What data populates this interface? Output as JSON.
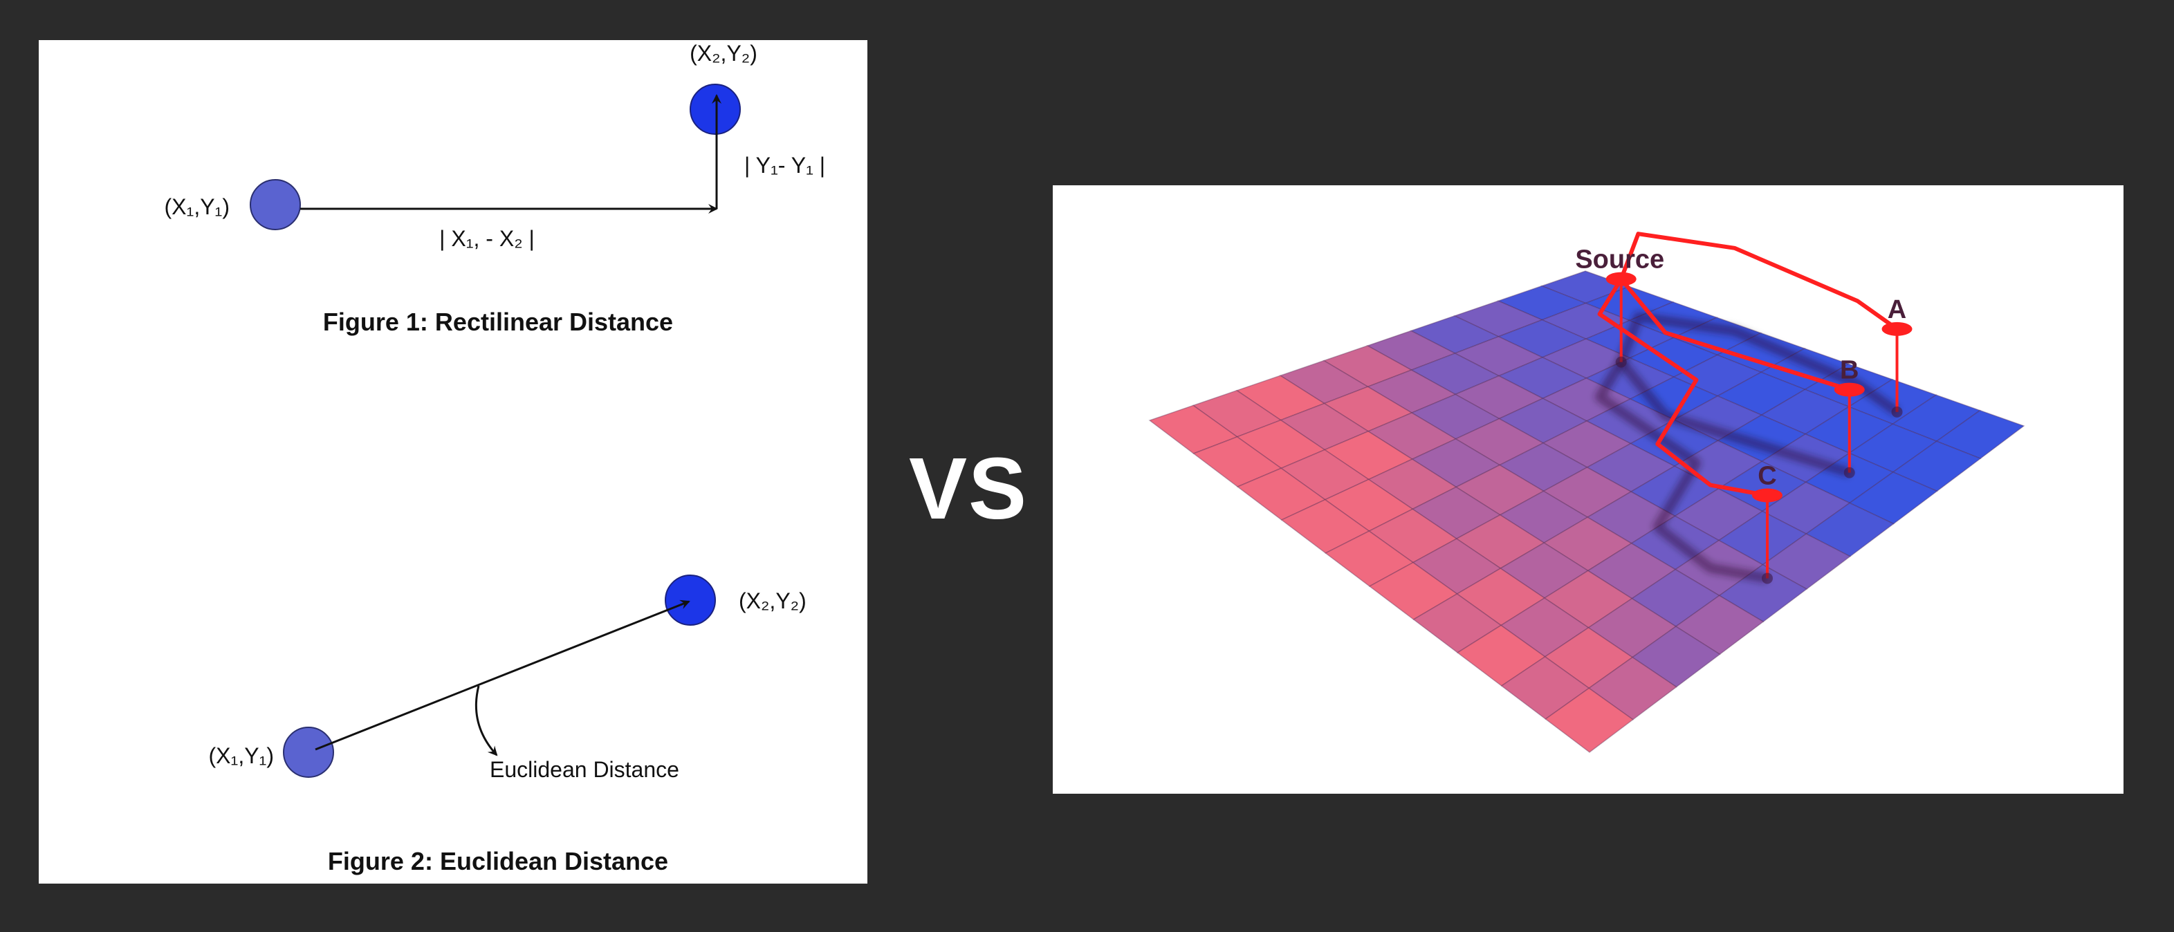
{
  "left": {
    "figure1": {
      "point1_label": "(X₁,Y₁)",
      "point2_label": "(X₂,Y₂)",
      "dx_label": "| X₁, - X₂ |",
      "dy_label": "| Y₁- Y₁ |",
      "caption": "Figure 1: Rectilinear Distance"
    },
    "figure2": {
      "point1_label": "(X₁,Y₁)",
      "point2_label": "(X₂,Y₂)",
      "distance_label": "Euclidean Distance",
      "caption": "Figure 2: Euclidean Distance"
    }
  },
  "vs_text": "VS",
  "right": {
    "grid": {
      "rows": 10,
      "cols": 10,
      "high_color": "#3a55e0",
      "low_color": "#f06a80",
      "path_color": "#ff2020"
    },
    "markers": [
      {
        "label": "A",
        "u": 7.8,
        "v": 0.7
      },
      {
        "label": "B",
        "u": 8.4,
        "v": 2.4
      },
      {
        "label": "Source",
        "u": 3.0,
        "v": 2.2
      },
      {
        "label": "C",
        "u": 9.3,
        "v": 5.2
      }
    ]
  },
  "colors": {
    "background": "#2b2b2b",
    "point_fill": "#5a63d0",
    "point_fill_bright": "#1c36e8"
  }
}
